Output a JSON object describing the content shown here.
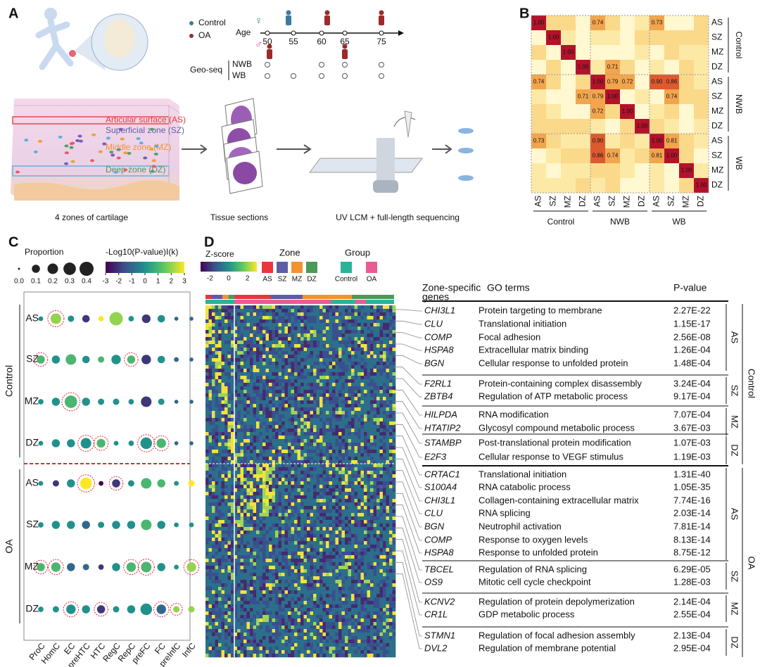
{
  "panels": [
    "A",
    "B",
    "C",
    "D"
  ],
  "panel_a": {
    "legend": [
      "Control",
      "OA"
    ],
    "female": "♀",
    "male": "♂",
    "age_label": "Age",
    "age_ticks": [
      "50",
      "55",
      "60",
      "65",
      "75"
    ],
    "geo_seq": "Geo-seq",
    "rows": [
      "NWB",
      "WB"
    ],
    "zones": [
      "Articular surface (AS)",
      "Superficial zone (SZ)",
      "Middle zone (MZ)",
      "Deep zone (DZ)"
    ],
    "captions": [
      "4 zones of cartilage",
      "Tissue sections",
      "UV LCM + full-length sequencing"
    ]
  },
  "panel_b": {
    "zones": [
      "AS",
      "SZ",
      "MZ",
      "DZ"
    ],
    "groups": [
      "Control",
      "NWB",
      "WB"
    ],
    "cells": [
      [
        "1.00",
        null,
        null,
        null,
        "0.74",
        null,
        null,
        null,
        "0.73",
        null,
        null,
        null
      ],
      [
        null,
        "1.00",
        null,
        null,
        null,
        null,
        null,
        null,
        null,
        null,
        null,
        null
      ],
      [
        null,
        null,
        "1.00",
        null,
        null,
        null,
        null,
        null,
        null,
        null,
        null,
        null
      ],
      [
        null,
        null,
        null,
        "1.00",
        null,
        "0.71",
        null,
        null,
        null,
        null,
        null,
        null
      ],
      [
        "0.74",
        null,
        null,
        null,
        "1.00",
        "0.79",
        "0.72",
        null,
        "0.90",
        "0.86",
        null,
        null
      ],
      [
        null,
        null,
        null,
        "0.71",
        "0.79",
        "1.00",
        null,
        null,
        null,
        "0.74",
        null,
        null
      ],
      [
        null,
        null,
        null,
        null,
        "0.72",
        null,
        "1.00",
        null,
        null,
        null,
        null,
        null
      ],
      [
        null,
        null,
        null,
        null,
        null,
        null,
        null,
        "1.00",
        null,
        null,
        null,
        null
      ],
      [
        "0.73",
        null,
        null,
        null,
        "0.90",
        null,
        null,
        null,
        "1.00",
        "0.81",
        null,
        null
      ],
      [
        null,
        null,
        null,
        null,
        "0.86",
        "0.74",
        null,
        null,
        "0.81",
        "1.00",
        null,
        null
      ],
      [
        null,
        null,
        null,
        null,
        null,
        null,
        null,
        null,
        null,
        null,
        "1.00",
        null
      ],
      [
        null,
        null,
        null,
        null,
        null,
        null,
        null,
        null,
        null,
        null,
        null,
        "1.00"
      ]
    ]
  },
  "panel_c": {
    "proportion_title": "Proportion",
    "size_ticks": [
      {
        "value": 0,
        "label": "0.0"
      },
      0.1,
      0.2,
      0.3,
      0.4
    ],
    "color_title": "-Log10(P-value)I(k)",
    "color_ticks": [
      -3,
      -2,
      -1,
      0,
      1,
      2,
      3
    ],
    "groups": [
      "Control",
      "OA"
    ],
    "zones": [
      "AS",
      "SZ",
      "MZ",
      "DZ"
    ],
    "cell_types": [
      "ProC",
      "HomC",
      "EC",
      "preHTC",
      "HTC",
      "RegC",
      "RepC",
      "preFC",
      "FC",
      "preInfC",
      "InfC"
    ],
    "proportion": [
      [
        0.02,
        0.2,
        0.05,
        0.08,
        0.03,
        0.35,
        0.03,
        0.12,
        0.08,
        0.01,
        0.01
      ],
      [
        0.1,
        0.1,
        0.2,
        0.08,
        0.05,
        0.15,
        0.1,
        0.15,
        0.08,
        0.02,
        0.01
      ],
      [
        0.03,
        0.1,
        0.3,
        0.1,
        0.05,
        0.05,
        0.03,
        0.2,
        0.05,
        0.01,
        0.01
      ],
      [
        0.02,
        0.1,
        0.1,
        0.2,
        0.12,
        0.02,
        0.03,
        0.25,
        0.15,
        0.01,
        0.01
      ],
      [
        0.02,
        0.05,
        0.1,
        0.25,
        0.02,
        0.1,
        0.05,
        0.2,
        0.1,
        0.02,
        0.05
      ],
      [
        0.03,
        0.1,
        0.1,
        0.1,
        0.05,
        0.1,
        0.1,
        0.2,
        0.1,
        0.02,
        0.02
      ],
      [
        0.1,
        0.15,
        0.1,
        0.05,
        0.03,
        0.1,
        0.15,
        0.2,
        0.1,
        0.02,
        0.15
      ],
      [
        0.03,
        0.05,
        0.15,
        0.1,
        0.1,
        0.05,
        0.1,
        0.25,
        0.15,
        0.05,
        0.05
      ]
    ],
    "score": [
      [
        0,
        2,
        0,
        -2,
        3,
        2,
        0,
        -2,
        0,
        -1,
        -1
      ],
      [
        1,
        0,
        1,
        0,
        1,
        0,
        1,
        -2,
        0,
        -1,
        -1
      ],
      [
        0,
        0,
        1,
        0,
        0,
        0,
        0,
        -2,
        0,
        -1,
        -1
      ],
      [
        0,
        0,
        0,
        0,
        1,
        0,
        0,
        0,
        1,
        -1,
        -1
      ],
      [
        0,
        -2,
        0,
        3,
        -3,
        -2,
        0,
        1,
        1,
        0,
        3
      ],
      [
        0,
        0,
        0,
        -1,
        0,
        0,
        0,
        1,
        0,
        0,
        0
      ],
      [
        1,
        1,
        -1,
        -1,
        -2,
        0,
        1,
        1,
        0,
        0,
        2
      ],
      [
        0,
        0,
        0,
        0,
        -2,
        0,
        0,
        0,
        -1,
        2,
        2
      ]
    ],
    "circled": [
      [
        "HomC"
      ],
      [
        "ProC",
        "RepC"
      ],
      [
        "EC"
      ],
      [
        "preHTC",
        "HTC",
        "preFC",
        "FC"
      ],
      [
        "preHTC",
        "RegC"
      ],
      [],
      [
        "ProC",
        "HomC",
        "RepC",
        "preFC",
        "InfC"
      ],
      [
        "EC",
        "HTC",
        "FC",
        "preInfC"
      ]
    ]
  },
  "panel_d": {
    "zscore_title": "Z-score",
    "zscore_ticks": [
      -2,
      0,
      2
    ],
    "zone_title": "Zone",
    "zones": [
      "AS",
      "SZ",
      "MZ",
      "DZ"
    ],
    "zone_colors": [
      "#e8373c",
      "#5b5ea6",
      "#f39233",
      "#4b9a5a"
    ],
    "group_title": "Group",
    "groups": [
      "Control",
      "OA"
    ],
    "group_colors": [
      "#2bb39a",
      "#ea5b94"
    ],
    "headers": [
      "Zone-specific",
      "genes",
      "GO terms",
      "P-value"
    ],
    "sections": [
      {
        "group": "Control",
        "zone": "AS",
        "rows": [
          [
            "CHI3L1",
            "Protein targeting to membrane",
            "2.27E-22"
          ],
          [
            "CLU",
            "Translational initiation",
            "1.15E-17"
          ],
          [
            "COMP",
            "Focal adhesion",
            "2.56E-08"
          ],
          [
            "HSPA8",
            "Extracellular matrix binding",
            "1.26E-04"
          ],
          [
            "BGN",
            "Cellular response to unfolded protein",
            "1.48E-04"
          ]
        ]
      },
      {
        "group": "Control",
        "zone": "SZ",
        "rows": [
          [
            "F2RL1",
            "Protein-containing complex disassembly",
            "3.24E-04"
          ],
          [
            "ZBTB4",
            "Regulation of ATP metabolic process",
            "9.17E-04"
          ]
        ]
      },
      {
        "group": "Control",
        "zone": "MZ",
        "rows": [
          [
            "HILPDA",
            "RNA modification",
            "7.07E-04"
          ],
          [
            "HTATIP2",
            "Glycosyl compound metabolic process",
            "3.67E-03"
          ]
        ]
      },
      {
        "group": "Control",
        "zone": "DZ",
        "rows": [
          [
            "STAMBP",
            "Post-translational protein modification",
            "1.07E-03"
          ],
          [
            "E2F3",
            "Cellular response to VEGF stimulus",
            "1.19E-03"
          ]
        ]
      },
      {
        "group": "OA",
        "zone": "AS",
        "rows": [
          [
            "CRTAC1",
            "Translational initiation",
            "1.31E-40"
          ],
          [
            "S100A4",
            "RNA catabolic process",
            "1.05E-35"
          ],
          [
            "CHI3L1",
            "Collagen-containing extracellular matrix",
            "7.74E-16"
          ],
          [
            "CLU",
            "RNA splicing",
            "2.03E-14"
          ],
          [
            "BGN",
            "Neutrophil activation",
            "7.81E-14"
          ],
          [
            "COMP",
            "Response to oxygen levels",
            "8.13E-14"
          ],
          [
            "HSPA8",
            "Response to unfolded protein",
            "8.75E-12"
          ]
        ]
      },
      {
        "group": "OA",
        "zone": "SZ",
        "rows": [
          [
            "TBCEL",
            "Regulation of RNA splicing",
            "6.29E-05"
          ],
          [
            "OS9",
            "Mitotic cell cycle checkpoint",
            "1.28E-03"
          ]
        ]
      },
      {
        "group": "OA",
        "zone": "MZ",
        "rows": [
          [
            "KCNV2",
            "Regulation of protein depolymerization",
            "2.14E-04"
          ],
          [
            "CR1L",
            "GDP metabolic process",
            "2.55E-04"
          ]
        ]
      },
      {
        "group": "OA",
        "zone": "DZ",
        "rows": [
          [
            "STMN1",
            "Regulation of focal adhesion assembly",
            "2.13E-04"
          ],
          [
            "DVL2",
            "Regulation of membrane potential",
            "2.95E-04"
          ]
        ]
      }
    ]
  }
}
